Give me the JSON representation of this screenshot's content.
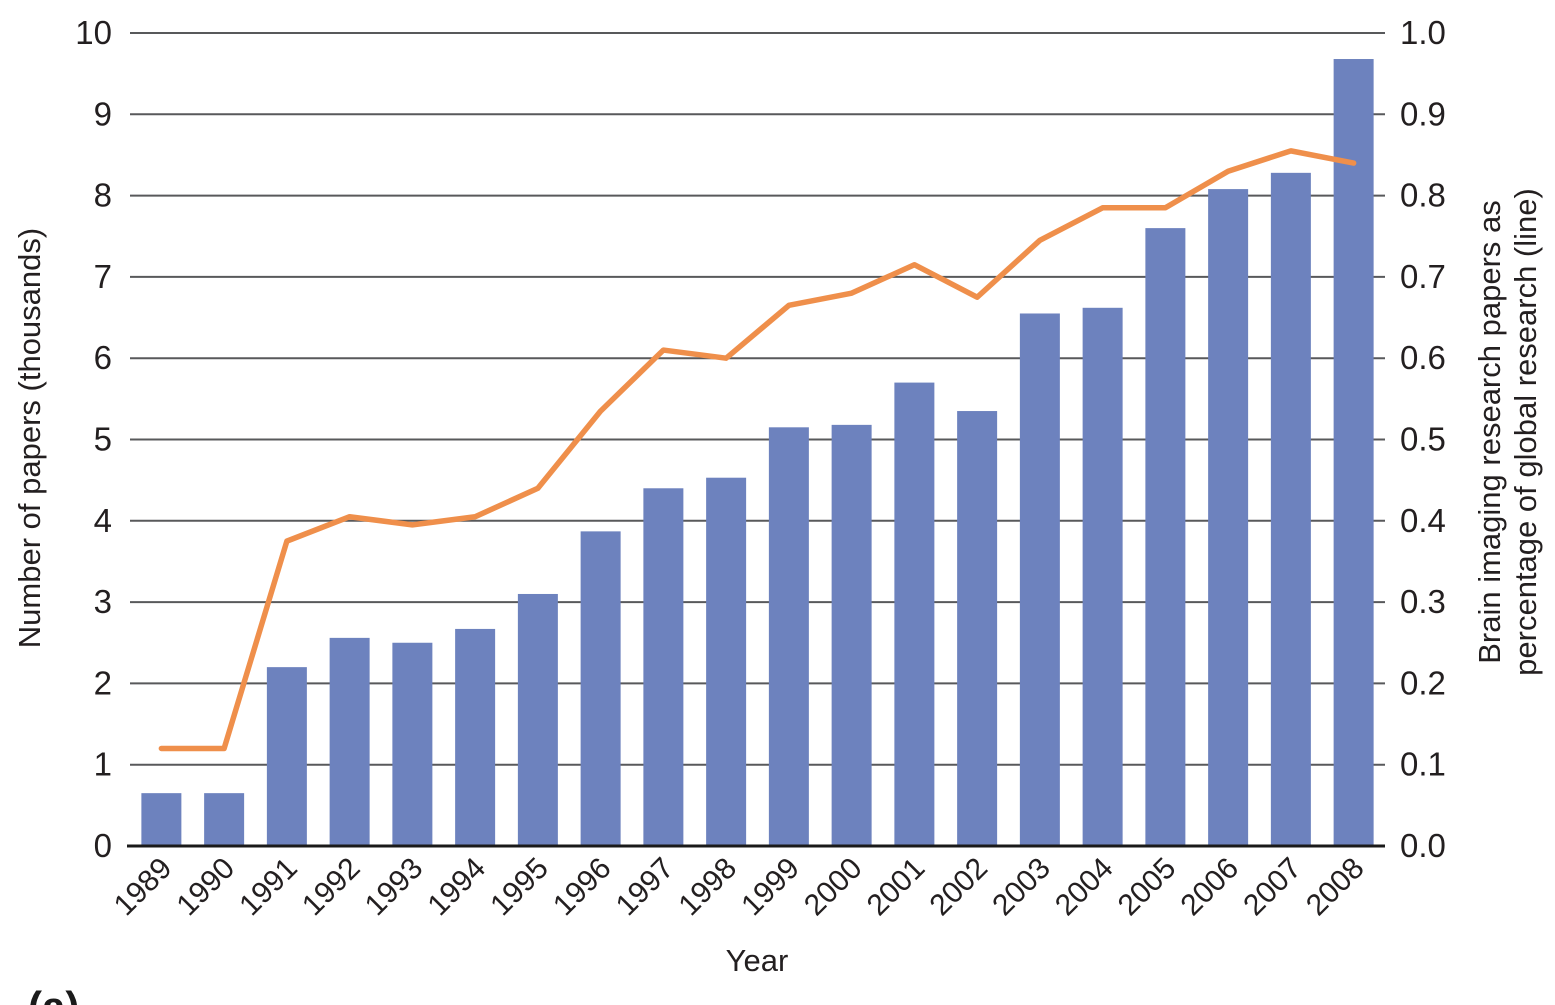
{
  "figure_label": "(a)",
  "axes": {
    "x_title": "Year",
    "left_title": "Number of papers (thousands)",
    "right_title_line1": "Brain imaging research papers as",
    "right_title_line2": "percentage of global research (line)",
    "left_tick_labels": [
      "0",
      "1",
      "2",
      "3",
      "4",
      "5",
      "6",
      "7",
      "8",
      "9",
      "10"
    ],
    "right_tick_labels": [
      "0.0",
      "0.1",
      "0.2",
      "0.3",
      "0.4",
      "0.5",
      "0.6",
      "0.7",
      "0.8",
      "0.9",
      "1.0"
    ]
  },
  "colors": {
    "bar": "#6d82be",
    "line": "#ef8f4b",
    "grid": "#58595b",
    "baseline": "#1a1a1a",
    "text": "#231f20"
  },
  "chart_data": {
    "type": "bar-line-combo",
    "categories": [
      "1989",
      "1990",
      "1991",
      "1992",
      "1993",
      "1994",
      "1995",
      "1996",
      "1997",
      "1998",
      "1999",
      "2000",
      "2001",
      "2002",
      "2003",
      "2004",
      "2005",
      "2006",
      "2007",
      "2008"
    ],
    "series": [
      {
        "name": "Number of papers (thousands)",
        "type": "bar",
        "axis": "left",
        "values": [
          0.65,
          0.65,
          2.2,
          2.56,
          2.5,
          2.67,
          3.1,
          3.87,
          4.4,
          4.53,
          5.15,
          5.18,
          5.7,
          5.35,
          6.55,
          6.62,
          7.6,
          8.08,
          8.28,
          9.68
        ]
      },
      {
        "name": "Brain imaging research papers as percentage of global research (line)",
        "type": "line",
        "axis": "right",
        "values": [
          0.12,
          0.12,
          0.375,
          0.405,
          0.395,
          0.405,
          0.44,
          0.535,
          0.61,
          0.6,
          0.665,
          0.68,
          0.715,
          0.675,
          0.745,
          0.785,
          0.785,
          0.83,
          0.855,
          0.84
        ]
      }
    ],
    "title": "",
    "xlabel": "Year",
    "left_ylabel": "Number of papers (thousands)",
    "right_ylabel": "Brain imaging research papers as percentage of global research (line)",
    "left_ylim": [
      0,
      10
    ],
    "right_ylim": [
      0.0,
      1.0
    ],
    "grid": true,
    "legend": false
  }
}
